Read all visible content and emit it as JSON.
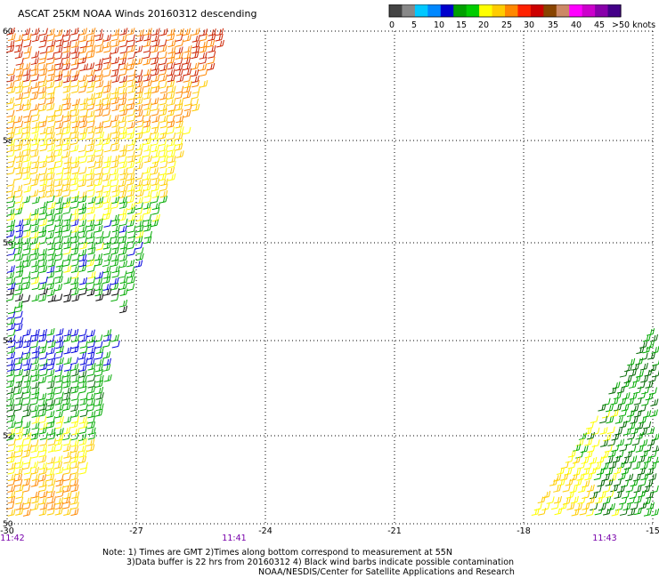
{
  "title": "ASCAT 25KM NOAA Winds 20160312 descending",
  "colorbar": {
    "colors": [
      "#444444",
      "#888888",
      "#00c8ff",
      "#0088ff",
      "#0000cc",
      "#00a000",
      "#00cc00",
      "#ffff00",
      "#ffcc00",
      "#ff8800",
      "#ff2200",
      "#cc0000",
      "#884400",
      "#cc8866",
      "#ff00ff",
      "#cc00cc",
      "#8800aa",
      "#440088"
    ],
    "labels": [
      {
        "text": "0"
      },
      {
        "text": "5"
      },
      {
        "text": "10"
      },
      {
        "text": "15"
      },
      {
        "text": "20"
      },
      {
        "text": "25"
      },
      {
        "text": "30"
      },
      {
        "text": "35"
      },
      {
        "text": "40"
      },
      {
        "text": "45"
      },
      {
        "text": ">50 knots"
      }
    ]
  },
  "axes": {
    "lat_labels": [
      "60",
      "58",
      "56",
      "54",
      "52",
      "50"
    ],
    "lon_labels": [
      "-30",
      "-27",
      "-24",
      "-21",
      "-18",
      "-15"
    ],
    "time_labels": [
      "11:42",
      "11:41",
      "11:43"
    ]
  },
  "notes": {
    "line1": "Note: 1) Times are GMT 2)Times along bottom correspond to measurement at 55N",
    "line2": "3)Data buffer is 22 hrs from 20160312 4) Black wind barbs indicate possible contamination",
    "line3": "NOAA/NESDIS/Center for Satellite Applications and Research"
  },
  "colors": {
    "grid": "#000000",
    "time_label": "#7700aa",
    "swath_colors": {
      "red": "#cc2200",
      "orange": "#ff8800",
      "gold": "#ffcc00",
      "yellow": "#ffff00",
      "green": "#00aa00",
      "dark_green": "#006600",
      "blue": "#0000dd",
      "black": "#000000"
    }
  }
}
